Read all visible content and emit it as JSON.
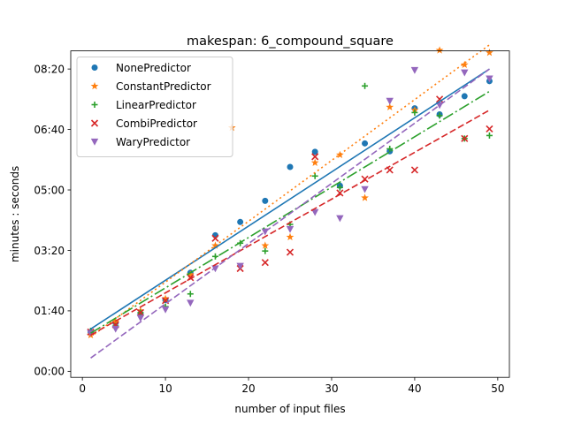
{
  "chart_data": {
    "type": "scatter",
    "title": "makespan: 6_compound_square",
    "xlabel": "number of input files",
    "ylabel": "minutes : seconds",
    "xlim": [
      -1.4,
      51.4
    ],
    "ylim": [
      -10,
      530
    ],
    "x_ticks": [
      0,
      10,
      20,
      30,
      40,
      50
    ],
    "y_ticks": [
      {
        "value": 0,
        "label": "00:00"
      },
      {
        "value": 100,
        "label": "01:40"
      },
      {
        "value": 200,
        "label": "03:20"
      },
      {
        "value": 300,
        "label": "05:00"
      },
      {
        "value": 400,
        "label": "06:40"
      },
      {
        "value": 500,
        "label": "08:20"
      }
    ],
    "legend_position": "top-left",
    "series": [
      {
        "name": "NonePredictor",
        "color": "#1f77b4",
        "marker": "circle",
        "points": [
          [
            1,
            65
          ],
          [
            4,
            80
          ],
          [
            7,
            95
          ],
          [
            10,
            118
          ],
          [
            13,
            163
          ],
          [
            16,
            225
          ],
          [
            19,
            247
          ],
          [
            22,
            282
          ],
          [
            25,
            338
          ],
          [
            28,
            363
          ],
          [
            31,
            307
          ],
          [
            34,
            377
          ],
          [
            37,
            364
          ],
          [
            40,
            435
          ],
          [
            43,
            425
          ],
          [
            46,
            455
          ],
          [
            49,
            480
          ]
        ],
        "fit": {
          "style": "solid",
          "x": [
            1,
            49
          ],
          "y": [
            70,
            500
          ]
        }
      },
      {
        "name": "ConstantPredictor",
        "color": "#ff7f0e",
        "marker": "star",
        "points": [
          [
            1,
            60
          ],
          [
            4,
            82
          ],
          [
            7,
            100
          ],
          [
            10,
            120
          ],
          [
            13,
            160
          ],
          [
            16,
            208
          ],
          [
            18,
            403
          ],
          [
            22,
            208
          ],
          [
            25,
            222
          ],
          [
            28,
            345
          ],
          [
            31,
            358
          ],
          [
            34,
            287
          ],
          [
            37,
            437
          ],
          [
            40,
            432
          ],
          [
            43,
            531
          ],
          [
            46,
            507
          ],
          [
            49,
            527
          ]
        ],
        "fit": {
          "style": "dotted",
          "x": [
            1,
            49
          ],
          "y": [
            57,
            540
          ]
        }
      },
      {
        "name": "LinearPredictor",
        "color": "#2ca02c",
        "marker": "plus",
        "points": [
          [
            1,
            67
          ],
          [
            4,
            75
          ],
          [
            7,
            97
          ],
          [
            10,
            107
          ],
          [
            13,
            128
          ],
          [
            16,
            190
          ],
          [
            19,
            212
          ],
          [
            22,
            199
          ],
          [
            25,
            243
          ],
          [
            28,
            323
          ],
          [
            31,
            304
          ],
          [
            34,
            472
          ],
          [
            37,
            368
          ],
          [
            40,
            428
          ],
          [
            43,
            423
          ],
          [
            46,
            385
          ],
          [
            49,
            390
          ]
        ],
        "fit": {
          "style": "dashdot",
          "x": [
            1,
            49
          ],
          "y": [
            63,
            463
          ]
        }
      },
      {
        "name": "CombiPredictor",
        "color": "#d62728",
        "marker": "x",
        "points": [
          [
            1,
            65
          ],
          [
            4,
            77
          ],
          [
            7,
            97
          ],
          [
            10,
            117
          ],
          [
            13,
            155
          ],
          [
            16,
            220
          ],
          [
            19,
            170
          ],
          [
            22,
            180
          ],
          [
            25,
            197
          ],
          [
            28,
            355
          ],
          [
            31,
            295
          ],
          [
            34,
            318
          ],
          [
            37,
            333
          ],
          [
            40,
            333
          ],
          [
            43,
            450
          ],
          [
            46,
            385
          ],
          [
            49,
            401
          ]
        ],
        "fit": {
          "style": "dashed",
          "x": [
            1,
            49
          ],
          "y": [
            60,
            432
          ]
        }
      },
      {
        "name": "WaryPredictor",
        "color": "#9467bd",
        "marker": "triangle-down",
        "points": [
          [
            1,
            63
          ],
          [
            4,
            70
          ],
          [
            7,
            88
          ],
          [
            10,
            102
          ],
          [
            13,
            113
          ],
          [
            16,
            170
          ],
          [
            19,
            174
          ],
          [
            22,
            231
          ],
          [
            25,
            235
          ],
          [
            28,
            263
          ],
          [
            31,
            253
          ],
          [
            34,
            301
          ],
          [
            37,
            447
          ],
          [
            40,
            498
          ],
          [
            43,
            440
          ],
          [
            46,
            494
          ],
          [
            49,
            484
          ]
        ],
        "fit": {
          "style": "dashed",
          "x": [
            1,
            49
          ],
          "y": [
            22,
            500
          ]
        }
      }
    ]
  }
}
